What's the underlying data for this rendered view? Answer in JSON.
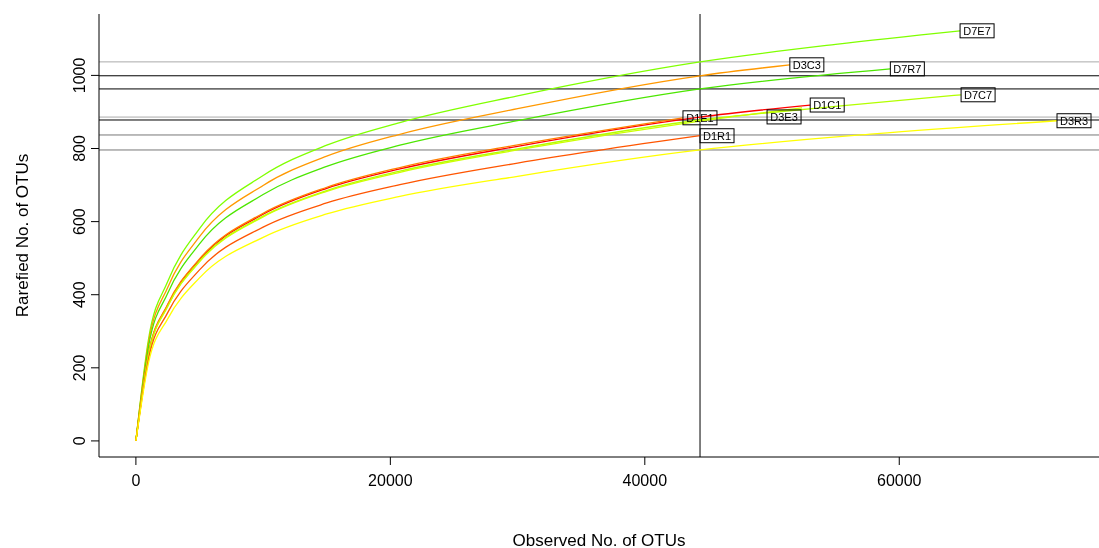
{
  "chart_data": {
    "type": "line",
    "xlabel": "Observed No. of OTUs",
    "ylabel": "Rarefied No. of OTUs",
    "xlim": [
      -2900,
      75700
    ],
    "ylim": [
      -44,
      1168
    ],
    "xticks": [
      0,
      20000,
      40000,
      60000
    ],
    "yticks": [
      0,
      200,
      400,
      600,
      800,
      1000
    ],
    "grid": false,
    "legend": false,
    "marker": "none",
    "line_style": "solid",
    "series": [
      {
        "name": "D7E7",
        "color": "#80ff00",
        "x": [
          0,
          1000,
          2500,
          5000,
          10000,
          15000,
          20750,
          30000,
          44340,
          55000,
          64780
        ],
        "values": [
          0,
          280,
          436,
          581,
          726,
          809,
          871,
          944,
          1037,
          1085,
          1122
        ]
      },
      {
        "name": "D3C3",
        "color": "#ff9900",
        "x": [
          0,
          1000,
          2500,
          5000,
          10000,
          15000,
          20750,
          30000,
          44340,
          51400
        ],
        "values": [
          0,
          270,
          420,
          559,
          699,
          779,
          839,
          909,
          999,
          1029
        ]
      },
      {
        "name": "D7R7",
        "color": "#4ce600",
        "x": [
          0,
          1000,
          2500,
          5000,
          10000,
          15000,
          20750,
          30000,
          44340,
          59300
        ],
        "values": [
          0,
          260,
          404,
          539,
          674,
          751,
          809,
          876,
          963,
          1018
        ]
      },
      {
        "name": "D1C1",
        "color": "#ff0000",
        "x": [
          0,
          1000,
          2500,
          5000,
          10000,
          15000,
          20750,
          30000,
          44340,
          53000
        ],
        "values": [
          0,
          239,
          372,
          496,
          620,
          691,
          744,
          806,
          886,
          919
        ]
      },
      {
        "name": "D7C7",
        "color": "#b3ff00",
        "x": [
          0,
          1000,
          2500,
          5000,
          10000,
          15000,
          20750,
          30000,
          44340,
          55000,
          64860
        ],
        "values": [
          0,
          237,
          369,
          492,
          615,
          685,
          738,
          799,
          878,
          915,
          947
        ]
      },
      {
        "name": "D1E1",
        "color": "#ff8000",
        "x": [
          0,
          1000,
          2500,
          5000,
          10000,
          15000,
          20750,
          30000,
          43000
        ],
        "values": [
          0,
          240,
          374,
          498,
          623,
          694,
          748,
          810,
          884
        ]
      },
      {
        "name": "D3E3",
        "color": "#ccff00",
        "x": [
          0,
          1000,
          2500,
          5000,
          10000,
          15000,
          20750,
          30000,
          44340,
          52360
        ],
        "values": [
          0,
          236,
          368,
          490,
          613,
          683,
          735,
          796,
          875,
          911
        ]
      },
      {
        "name": "D1R1",
        "color": "#ff5500",
        "x": [
          0,
          1000,
          2500,
          5000,
          10000,
          15000,
          20750,
          30000,
          44340
        ],
        "values": [
          0,
          225,
          351,
          468,
          585,
          651,
          701,
          760,
          835
        ]
      },
      {
        "name": "D3R3",
        "color": "#ffff00",
        "x": [
          0,
          1000,
          2500,
          5000,
          10000,
          15000,
          20750,
          30000,
          44340,
          58000,
          72400
        ],
        "values": [
          0,
          215,
          334,
          446,
          557,
          621,
          669,
          724,
          796,
          840,
          876
        ]
      }
    ],
    "ref_lines": [
      {
        "axis": "x",
        "value": 44340,
        "color": "#000000"
      },
      {
        "axis": "y",
        "value": 1037,
        "color": "#aaaaaa"
      },
      {
        "axis": "y",
        "value": 999,
        "color": "#000000"
      },
      {
        "axis": "y",
        "value": 963,
        "color": "#000000"
      },
      {
        "axis": "y",
        "value": 886,
        "color": "#aaaaaa"
      },
      {
        "axis": "y",
        "value": 878,
        "color": "#000000"
      },
      {
        "axis": "y",
        "value": 837,
        "color": "#777777"
      },
      {
        "axis": "y",
        "value": 796,
        "color": "#777777"
      }
    ]
  }
}
